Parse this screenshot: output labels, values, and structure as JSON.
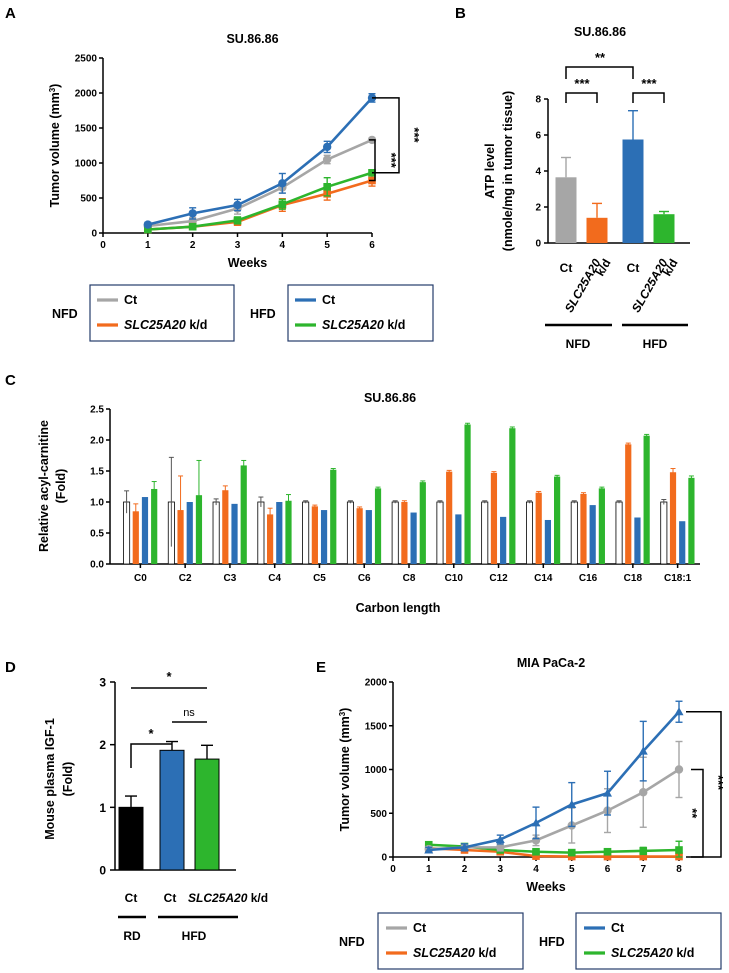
{
  "panel_labels": {
    "a": "A",
    "b": "B",
    "c": "C",
    "d": "D",
    "e": "E"
  },
  "colors": {
    "ct_nfd": "#a6a6a6",
    "kd_nfd": "#f26b1d",
    "ct_hfd": "#2c6fb5",
    "kd_hfd": "#2db52d",
    "black": "#000000",
    "white": "#ffffff",
    "box": "#243c6b"
  },
  "chart_data": [
    {
      "id": "A",
      "type": "line",
      "title": "SU.86.86",
      "xlabel": "Weeks",
      "ylabel": "Tumor volume (mm³)",
      "ylabel_parts": [
        "Tumor volume (mm",
        "3",
        ")"
      ],
      "xlim": [
        0,
        6
      ],
      "ylim": [
        0,
        2500
      ],
      "xticks": [
        "0",
        "1",
        "2",
        "3",
        "4",
        "5",
        "6"
      ],
      "yticks": [
        "0",
        "500",
        "1000",
        "1500",
        "2000",
        "2500"
      ],
      "x": [
        1,
        2,
        3,
        4,
        5,
        6
      ],
      "series": [
        {
          "name": "NFD Ct",
          "values": [
            100,
            170,
            350,
            650,
            1050,
            1330
          ],
          "err": [
            30,
            50,
            80,
            80,
            60,
            25
          ]
        },
        {
          "name": "NFD SLC25A20 k/d",
          "values": [
            50,
            90,
            160,
            400,
            560,
            750
          ],
          "err": [
            20,
            40,
            50,
            90,
            90,
            80
          ]
        },
        {
          "name": "HFD Ct",
          "values": [
            120,
            280,
            400,
            710,
            1230,
            1930
          ],
          "err": [
            30,
            80,
            80,
            140,
            80,
            60
          ]
        },
        {
          "name": "HFD SLC25A20 k/d",
          "values": [
            50,
            90,
            180,
            410,
            660,
            860
          ],
          "err": [
            20,
            40,
            50,
            70,
            130,
            40
          ]
        }
      ],
      "significance": [
        "***",
        "***"
      ]
    },
    {
      "id": "B",
      "type": "bar",
      "title": "SU.86.86",
      "ylabel_lines": [
        "ATP level",
        "(nmole/mg in tumor tissue)"
      ],
      "ylim": [
        0,
        8
      ],
      "yticks": [
        "0",
        "2",
        "4",
        "6",
        "8"
      ],
      "categories": [
        "Ct",
        "SLC25A20 k/d",
        "Ct",
        "SLC25A20 k/d"
      ],
      "kd_lines": [
        "SLC25A20",
        "k/d"
      ],
      "values": [
        3.65,
        1.4,
        5.75,
        1.6
      ],
      "err": [
        1.1,
        0.8,
        1.6,
        0.15
      ],
      "groups": [
        "NFD",
        "HFD"
      ],
      "significance": [
        "**",
        "***",
        "***"
      ]
    },
    {
      "id": "C",
      "type": "bar",
      "title": "SU.86.86",
      "xlabel": "Carbon length",
      "ylabel_lines": [
        "Relative acyl-carnitine",
        "(Fold)"
      ],
      "ylim": [
        0,
        2.5
      ],
      "yticks": [
        "0.0",
        "0.5",
        "1.0",
        "1.5",
        "2.0",
        "2.5"
      ],
      "categories": [
        "C0",
        "C2",
        "C3",
        "C4",
        "C5",
        "C6",
        "C8",
        "C10",
        "C12",
        "C14",
        "C16",
        "C18",
        "C18:1"
      ],
      "series": [
        {
          "name": "NFD Ct",
          "values": [
            1.0,
            1.0,
            1.0,
            1.0,
            1.0,
            1.0,
            1.0,
            1.0,
            1.0,
            1.0,
            1.0,
            1.0,
            1.0
          ],
          "err": [
            0.18,
            0.72,
            0.05,
            0.08,
            0.02,
            0.02,
            0.02,
            0.02,
            0.02,
            0.02,
            0.02,
            0.02,
            0.04
          ]
        },
        {
          "name": "NFD SLC25A20 k/d",
          "values": [
            0.85,
            0.87,
            1.19,
            0.8,
            0.93,
            0.9,
            1.0,
            1.49,
            1.47,
            1.15,
            1.13,
            1.93,
            1.48
          ],
          "err": [
            0.12,
            0.55,
            0.07,
            0.1,
            0.02,
            0.02,
            0.02,
            0.02,
            0.02,
            0.02,
            0.02,
            0.02,
            0.06
          ]
        },
        {
          "name": "HFD Ct",
          "values": [
            1.08,
            1.0,
            0.97,
            1.0,
            0.87,
            0.87,
            0.83,
            0.8,
            0.76,
            0.71,
            0.95,
            0.75,
            0.69
          ]
        },
        {
          "name": "HFD SLC25A20 k/d",
          "values": [
            1.21,
            1.11,
            1.59,
            1.02,
            1.52,
            1.22,
            1.32,
            2.25,
            2.19,
            1.41,
            1.22,
            2.07,
            1.39
          ],
          "err": [
            0.12,
            0.56,
            0.08,
            0.1,
            0.02,
            0.02,
            0.02,
            0.02,
            0.02,
            0.02,
            0.02,
            0.02,
            0.03
          ]
        }
      ]
    },
    {
      "id": "D",
      "type": "bar",
      "ylabel_lines": [
        "Mouse plasma IGF-1",
        "(Fold)"
      ],
      "ylim": [
        0,
        3
      ],
      "yticks": [
        "0",
        "1",
        "2",
        "3"
      ],
      "categories": [
        "Ct",
        "Ct",
        "SLC25A20 k/d"
      ],
      "kd_gene": "SLC25A20",
      "kd_suffix": " k/d",
      "values": [
        1.0,
        1.91,
        1.77
      ],
      "err": [
        0.18,
        0.14,
        0.22
      ],
      "groups": [
        "RD",
        "HFD"
      ],
      "significance": [
        "*",
        "*",
        "ns"
      ]
    },
    {
      "id": "E",
      "type": "line",
      "title": "MIA PaCa-2",
      "xlabel": "Weeks",
      "ylabel": "Tumor volume (mm³)",
      "ylabel_parts": [
        "Tumor volume (mm",
        "3",
        ")"
      ],
      "xlim": [
        0,
        8
      ],
      "ylim": [
        0,
        2000
      ],
      "xticks": [
        "0",
        "1",
        "2",
        "3",
        "4",
        "5",
        "6",
        "7",
        "8"
      ],
      "yticks": [
        "0",
        "500",
        "1000",
        "1500",
        "2000"
      ],
      "x": [
        1,
        2,
        3,
        4,
        5,
        6,
        7,
        8
      ],
      "series": [
        {
          "name": "NFD Ct",
          "values": [
            90,
            110,
            110,
            190,
            360,
            530,
            740,
            1000
          ],
          "err": [
            30,
            30,
            40,
            60,
            200,
            250,
            400,
            320
          ]
        },
        {
          "name": "NFD SLC25A20 k/d",
          "values": [
            100,
            80,
            60,
            10,
            5,
            5,
            5,
            5
          ],
          "err": [
            20,
            20,
            20,
            10,
            5,
            5,
            5,
            5
          ]
        },
        {
          "name": "HFD Ct",
          "values": [
            80,
            110,
            200,
            390,
            600,
            730,
            1210,
            1660
          ],
          "err": [
            30,
            40,
            50,
            180,
            250,
            250,
            340,
            120
          ]
        },
        {
          "name": "HFD SLC25A20 k/d",
          "values": [
            140,
            120,
            80,
            60,
            50,
            60,
            70,
            80
          ],
          "err": [
            30,
            20,
            20,
            20,
            20,
            20,
            40,
            100
          ]
        }
      ],
      "significance": [
        "**",
        "***"
      ]
    }
  ],
  "legend": {
    "nfd": "NFD",
    "hfd": "HFD",
    "ct": "Ct",
    "kd_gene": "SLC25A20",
    "kd_suffix": " k/d"
  }
}
